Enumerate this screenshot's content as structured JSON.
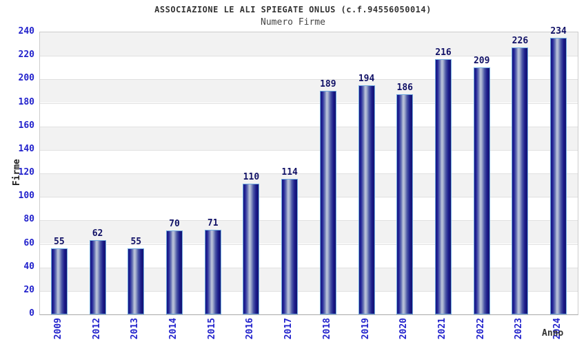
{
  "header": {
    "title": "ASSOCIAZIONE LE ALI SPIEGATE ONLUS (c.f.94556050014)",
    "subtitle": "Numero Firme"
  },
  "chart_data": {
    "type": "bar",
    "title": "ASSOCIAZIONE LE ALI SPIEGATE ONLUS (c.f.94556050014)",
    "subtitle": "Numero Firme",
    "xlabel": "Anno",
    "ylabel": "Firme",
    "categories": [
      "2009",
      "2012",
      "2013",
      "2014",
      "2015",
      "2016",
      "2017",
      "2018",
      "2019",
      "2020",
      "2021",
      "2022",
      "2023",
      "2024"
    ],
    "values": [
      55,
      62,
      55,
      70,
      71,
      110,
      114,
      189,
      194,
      186,
      216,
      209,
      226,
      234
    ],
    "ylim": [
      0,
      240
    ],
    "ytick_step": 20,
    "grid": true,
    "legend": "none",
    "value_labels_shown": true,
    "colors": {
      "tick_label": "#2222cc",
      "value_label": "#111166",
      "bar_border": "#70aadf",
      "bar_dark": "#15157e",
      "bar_highlight": "#bcc4da",
      "band_gray": "#f2f2f2",
      "band_white": "#ffffff",
      "grid_line": "#e0e0e0",
      "plot_border": "#cccccc",
      "title_color": "#333333"
    }
  }
}
